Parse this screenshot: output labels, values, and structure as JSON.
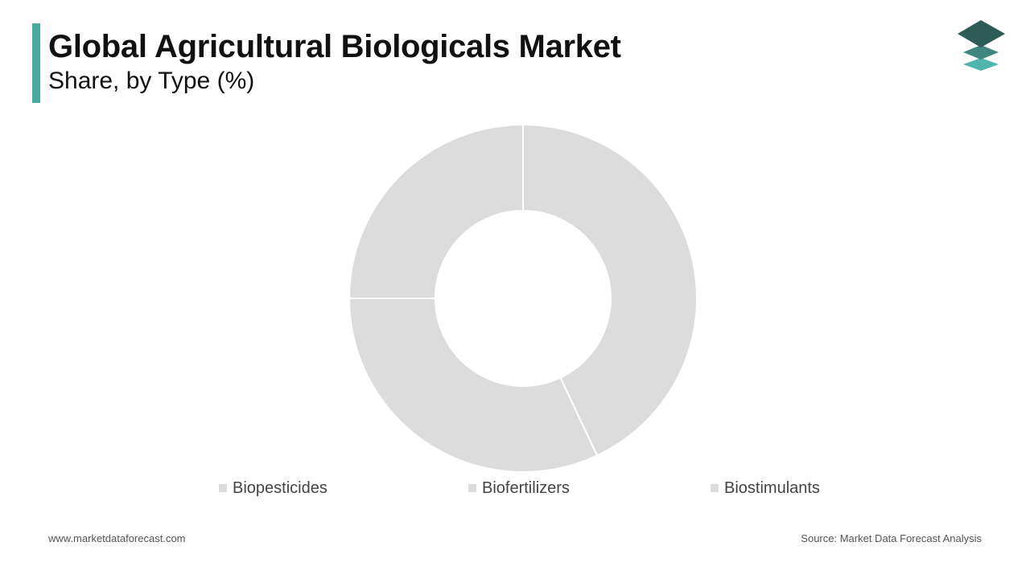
{
  "header": {
    "title": "Global Agricultural Biologicals Market",
    "subtitle": "Share, by Type (%)",
    "accent_color": "#4aa9a4"
  },
  "logo": {
    "icon": "stacked-layers-icon",
    "colors": [
      "#2f5b57",
      "#3f8580",
      "#4fb5ae"
    ]
  },
  "chart_data": {
    "type": "pie",
    "donut": true,
    "categories": [
      "Biopesticides",
      "Biofertilizers",
      "Biostimulants"
    ],
    "values": [
      43,
      32,
      25
    ],
    "colors": [
      "#dcdcdc",
      "#dcdcdc",
      "#dcdcdc"
    ],
    "legend": "bottom"
  },
  "footer": {
    "website": "www.marketdataforecast.com",
    "source": "Source: Market Data Forecast Analysis"
  }
}
